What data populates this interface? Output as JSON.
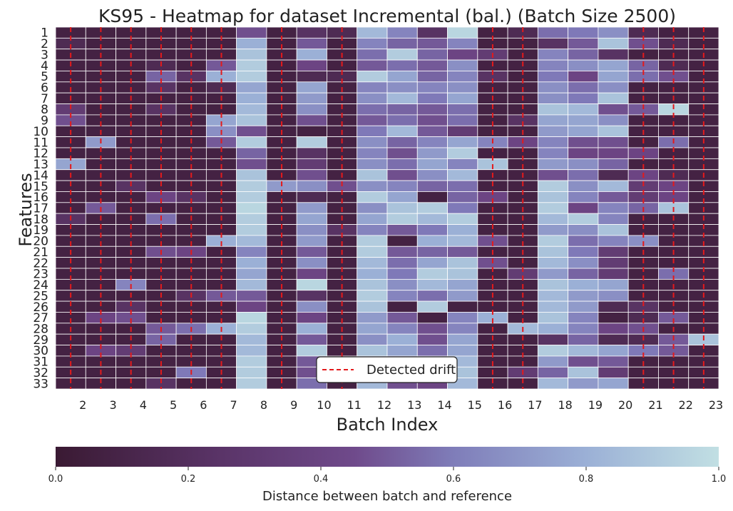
{
  "chart_data": {
    "type": "heatmap",
    "title": "KS95 - Heatmap for dataset Incremental (bal.) (Batch Size 2500)",
    "xlabel": "Batch Index",
    "ylabel": "Features",
    "x_ticks": [
      "2",
      "3",
      "4",
      "5",
      "6",
      "7",
      "8",
      "9",
      "10",
      "11",
      "12",
      "13",
      "14",
      "15",
      "16",
      "17",
      "18",
      "19",
      "20",
      "21",
      "22",
      "23"
    ],
    "y_ticks": [
      "1",
      "2",
      "3",
      "4",
      "5",
      "6",
      "7",
      "8",
      "9",
      "10",
      "11",
      "12",
      "13",
      "14",
      "15",
      "16",
      "17",
      "18",
      "19",
      "20",
      "21",
      "22",
      "23",
      "24",
      "25",
      "26",
      "27",
      "28",
      "29",
      "30",
      "31",
      "32",
      "33"
    ],
    "values": [
      [
        0.05,
        0.05,
        0.05,
        0.05,
        0.05,
        0.05,
        0.3,
        0.05,
        0.15,
        0.1,
        0.8,
        0.55,
        0.15,
        0.95,
        0.05,
        0.1,
        0.45,
        0.5,
        0.6,
        0.1,
        0.05,
        0.05
      ],
      [
        0.1,
        0.05,
        0.05,
        0.05,
        0.05,
        0.05,
        0.75,
        0.05,
        0.35,
        0.05,
        0.55,
        0.4,
        0.35,
        0.55,
        0.05,
        0.05,
        0.15,
        0.35,
        0.85,
        0.3,
        0.1,
        0.05
      ],
      [
        0.05,
        0.05,
        0.05,
        0.05,
        0.05,
        0.05,
        0.85,
        0.05,
        0.75,
        0.05,
        0.45,
        0.9,
        0.4,
        0.25,
        0.2,
        0.05,
        0.55,
        0.4,
        0.15,
        0.05,
        0.05,
        0.05
      ],
      [
        0.05,
        0.05,
        0.05,
        0.1,
        0.05,
        0.35,
        0.9,
        0.05,
        0.25,
        0.05,
        0.35,
        0.45,
        0.35,
        0.6,
        0.05,
        0.05,
        0.55,
        0.6,
        0.7,
        0.4,
        0.1,
        0.05
      ],
      [
        0.05,
        0.05,
        0.05,
        0.4,
        0.15,
        0.75,
        0.9,
        0.05,
        0.1,
        0.1,
        0.9,
        0.7,
        0.4,
        0.55,
        0.15,
        0.05,
        0.5,
        0.25,
        0.7,
        0.45,
        0.3,
        0.05
      ],
      [
        0.05,
        0.05,
        0.05,
        0.15,
        0.05,
        0.1,
        0.7,
        0.05,
        0.7,
        0.05,
        0.55,
        0.6,
        0.55,
        0.6,
        0.05,
        0.05,
        0.6,
        0.45,
        0.6,
        0.05,
        0.05,
        0.05
      ],
      [
        0.05,
        0.05,
        0.05,
        0.05,
        0.05,
        0.05,
        0.75,
        0.05,
        0.65,
        0.05,
        0.6,
        0.8,
        0.5,
        0.7,
        0.05,
        0.05,
        0.6,
        0.5,
        0.85,
        0.05,
        0.05,
        0.05
      ],
      [
        0.2,
        0.05,
        0.05,
        0.15,
        0.05,
        0.05,
        0.8,
        0.05,
        0.6,
        0.05,
        0.45,
        0.4,
        0.35,
        0.45,
        0.05,
        0.05,
        0.85,
        0.8,
        0.3,
        0.35,
        0.95,
        0.05
      ],
      [
        0.3,
        0.05,
        0.05,
        0.05,
        0.05,
        0.7,
        0.85,
        0.05,
        0.3,
        0.05,
        0.35,
        0.45,
        0.3,
        0.45,
        0.05,
        0.15,
        0.7,
        0.7,
        0.6,
        0.05,
        0.05,
        0.05
      ],
      [
        0.05,
        0.05,
        0.05,
        0.05,
        0.05,
        0.6,
        0.3,
        0.05,
        0.05,
        0.05,
        0.5,
        0.8,
        0.35,
        0.2,
        0.05,
        0.05,
        0.65,
        0.7,
        0.85,
        0.05,
        0.05,
        0.05
      ],
      [
        0.05,
        0.65,
        0.05,
        0.05,
        0.05,
        0.35,
        0.9,
        0.05,
        0.9,
        0.05,
        0.6,
        0.4,
        0.55,
        0.7,
        0.55,
        0.25,
        0.55,
        0.3,
        0.3,
        0.05,
        0.45,
        0.05
      ],
      [
        0.05,
        0.05,
        0.05,
        0.05,
        0.05,
        0.05,
        0.4,
        0.05,
        0.15,
        0.05,
        0.55,
        0.3,
        0.65,
        0.9,
        0.05,
        0.05,
        0.55,
        0.25,
        0.25,
        0.25,
        0.05,
        0.05
      ],
      [
        0.7,
        0.05,
        0.05,
        0.05,
        0.05,
        0.05,
        0.3,
        0.05,
        0.2,
        0.05,
        0.6,
        0.45,
        0.7,
        0.55,
        0.85,
        0.05,
        0.65,
        0.6,
        0.4,
        0.05,
        0.05,
        0.05
      ],
      [
        0.05,
        0.05,
        0.05,
        0.05,
        0.05,
        0.05,
        0.85,
        0.05,
        0.3,
        0.05,
        0.85,
        0.3,
        0.6,
        0.8,
        0.05,
        0.05,
        0.3,
        0.45,
        0.1,
        0.25,
        0.1,
        0.05
      ],
      [
        0.05,
        0.05,
        0.15,
        0.05,
        0.05,
        0.05,
        0.9,
        0.65,
        0.6,
        0.3,
        0.6,
        0.55,
        0.4,
        0.45,
        0.05,
        0.05,
        0.9,
        0.6,
        0.8,
        0.2,
        0.25,
        0.05
      ],
      [
        0.05,
        0.05,
        0.05,
        0.25,
        0.15,
        0.05,
        0.9,
        0.05,
        0.1,
        0.05,
        0.9,
        0.7,
        0.05,
        0.4,
        0.25,
        0.05,
        0.85,
        0.55,
        0.35,
        0.2,
        0.25,
        0.05
      ],
      [
        0.05,
        0.35,
        0.05,
        0.05,
        0.05,
        0.05,
        0.95,
        0.05,
        0.65,
        0.05,
        0.6,
        0.85,
        0.9,
        0.5,
        0.05,
        0.05,
        0.9,
        0.25,
        0.55,
        0.4,
        0.85,
        0.05
      ],
      [
        0.15,
        0.05,
        0.05,
        0.45,
        0.05,
        0.05,
        0.9,
        0.05,
        0.7,
        0.05,
        0.7,
        0.9,
        0.8,
        0.9,
        0.05,
        0.05,
        0.8,
        0.9,
        0.55,
        0.05,
        0.05,
        0.05
      ],
      [
        0.05,
        0.05,
        0.05,
        0.05,
        0.05,
        0.05,
        0.9,
        0.05,
        0.6,
        0.15,
        0.55,
        0.35,
        0.5,
        0.75,
        0.05,
        0.05,
        0.65,
        0.6,
        0.85,
        0.05,
        0.05,
        0.05
      ],
      [
        0.05,
        0.05,
        0.05,
        0.05,
        0.05,
        0.75,
        0.8,
        0.05,
        0.65,
        0.05,
        0.9,
        0.05,
        0.75,
        0.8,
        0.3,
        0.05,
        0.9,
        0.45,
        0.55,
        0.6,
        0.05,
        0.05
      ],
      [
        0.05,
        0.05,
        0.05,
        0.3,
        0.25,
        0.05,
        0.55,
        0.05,
        0.35,
        0.05,
        0.9,
        0.35,
        0.4,
        0.35,
        0.05,
        0.05,
        0.85,
        0.5,
        0.2,
        0.05,
        0.05,
        0.05
      ],
      [
        0.05,
        0.05,
        0.05,
        0.05,
        0.05,
        0.05,
        0.75,
        0.05,
        0.6,
        0.05,
        0.8,
        0.45,
        0.7,
        0.85,
        0.3,
        0.05,
        0.8,
        0.6,
        0.2,
        0.05,
        0.05,
        0.05
      ],
      [
        0.05,
        0.05,
        0.05,
        0.05,
        0.05,
        0.05,
        0.7,
        0.05,
        0.25,
        0.05,
        0.75,
        0.5,
        0.9,
        0.85,
        0.05,
        0.2,
        0.65,
        0.4,
        0.2,
        0.05,
        0.45,
        0.05
      ],
      [
        0.05,
        0.05,
        0.55,
        0.05,
        0.05,
        0.05,
        0.8,
        0.05,
        0.95,
        0.05,
        0.85,
        0.6,
        0.8,
        0.7,
        0.05,
        0.05,
        0.85,
        0.75,
        0.7,
        0.05,
        0.05,
        0.05
      ],
      [
        0.05,
        0.05,
        0.05,
        0.05,
        0.15,
        0.35,
        0.35,
        0.05,
        0.15,
        0.05,
        0.9,
        0.55,
        0.45,
        0.65,
        0.05,
        0.05,
        0.8,
        0.65,
        0.6,
        0.05,
        0.05,
        0.05
      ],
      [
        0.05,
        0.05,
        0.15,
        0.05,
        0.05,
        0.05,
        0.25,
        0.05,
        0.6,
        0.05,
        0.85,
        0.05,
        0.9,
        0.05,
        0.05,
        0.05,
        0.8,
        0.65,
        0.1,
        0.15,
        0.05,
        0.05
      ],
      [
        0.05,
        0.25,
        0.3,
        0.05,
        0.05,
        0.05,
        0.95,
        0.05,
        0.25,
        0.05,
        0.65,
        0.35,
        0.05,
        0.55,
        0.75,
        0.05,
        0.85,
        0.55,
        0.05,
        0.1,
        0.35,
        0.05
      ],
      [
        0.05,
        0.05,
        0.05,
        0.35,
        0.45,
        0.75,
        0.9,
        0.05,
        0.75,
        0.05,
        0.7,
        0.55,
        0.3,
        0.55,
        0.05,
        0.8,
        0.75,
        0.55,
        0.25,
        0.3,
        0.05,
        0.05
      ],
      [
        0.05,
        0.05,
        0.05,
        0.4,
        0.05,
        0.05,
        0.8,
        0.05,
        0.35,
        0.05,
        0.6,
        0.75,
        0.3,
        0.7,
        0.05,
        0.05,
        0.15,
        0.4,
        0.1,
        0.1,
        0.35,
        0.85
      ],
      [
        0.05,
        0.25,
        0.2,
        0.05,
        0.05,
        0.05,
        0.8,
        0.05,
        0.9,
        0.05,
        0.85,
        0.7,
        0.45,
        0.7,
        0.05,
        0.05,
        0.9,
        0.8,
        0.7,
        0.5,
        0.35,
        0.05
      ],
      [
        0.05,
        0.05,
        0.05,
        0.05,
        0.05,
        0.05,
        0.9,
        0.05,
        0.35,
        0.05,
        0.7,
        0.4,
        0.55,
        0.8,
        0.05,
        0.05,
        0.65,
        0.3,
        0.35,
        0.05,
        0.05,
        0.05
      ],
      [
        0.05,
        0.05,
        0.05,
        0.05,
        0.5,
        0.05,
        0.9,
        0.05,
        0.3,
        0.05,
        0.4,
        0.6,
        0.25,
        0.85,
        0.05,
        0.2,
        0.4,
        0.85,
        0.2,
        0.05,
        0.05,
        0.05
      ],
      [
        0.05,
        0.05,
        0.05,
        0.15,
        0.05,
        0.05,
        0.9,
        0.05,
        0.45,
        0.05,
        0.8,
        0.3,
        0.25,
        0.8,
        0.05,
        0.05,
        0.8,
        0.65,
        0.7,
        0.05,
        0.05,
        0.05
      ]
    ],
    "drift_batches": [
      2,
      3,
      4,
      5,
      6,
      7,
      9,
      11,
      16,
      17,
      21,
      22,
      23
    ],
    "legend": {
      "label": "Detected drift",
      "placement": "lower-center"
    },
    "colorbar": {
      "label": "Distance between batch and reference",
      "range": [
        0.0,
        1.0
      ],
      "ticks": [
        "0.0",
        "0.2",
        "0.4",
        "0.6",
        "0.8",
        "1.0"
      ],
      "colors": [
        "#3a1a33",
        "#6c4483",
        "#7f79b8",
        "#9bb0d6",
        "#c1dfe3"
      ]
    },
    "drift_color": "#e31a1c"
  }
}
